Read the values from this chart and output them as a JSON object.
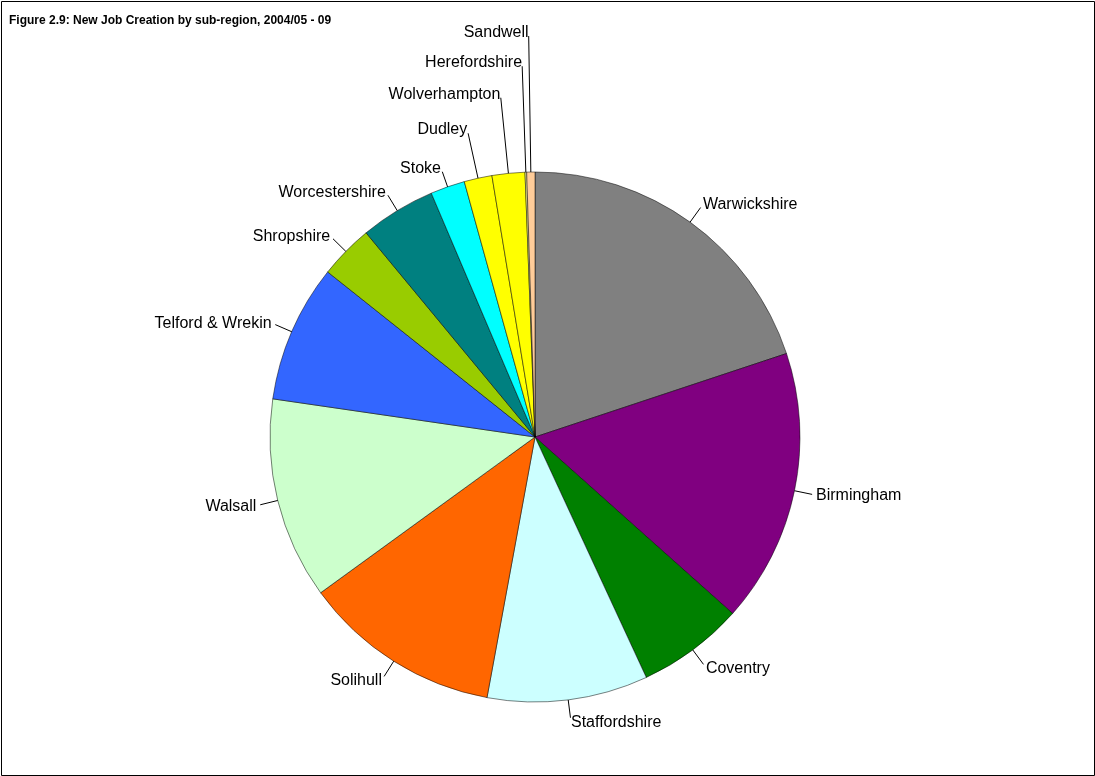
{
  "chart_data": {
    "type": "pie",
    "title": "Figure 2.9: New Job Creation by sub-region, 2004/05 - 09",
    "categories": [
      "Warwickshire",
      "Birmingham",
      "Coventry",
      "Staffordshire",
      "Solihull",
      "Walsall",
      "Telford & Wrekin",
      "Shropshire",
      "Worcestershire",
      "Stoke",
      "Dudley",
      "Wolverhampton",
      "Herefordshire",
      "Sandwell"
    ],
    "values": [
      19.9,
      16.7,
      6.5,
      9.8,
      12.1,
      12.3,
      8.4,
      3.3,
      4.6,
      2.1,
      1.7,
      2.0,
      0.1,
      0.5
    ],
    "colors": [
      "#808080",
      "#800080",
      "#008000",
      "#ccffff",
      "#ff6600",
      "#ccffcc",
      "#3366ff",
      "#99cc00",
      "#008080",
      "#00ffff",
      "#ffff00",
      "#ffff00",
      "#ffff99",
      "#ffcc99"
    ]
  }
}
